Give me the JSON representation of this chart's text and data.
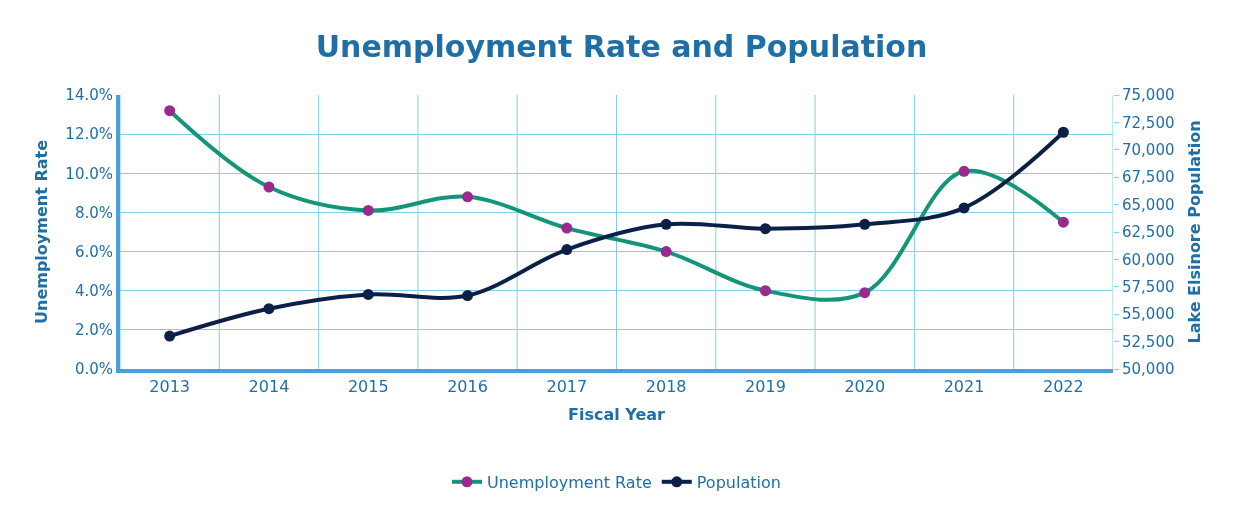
{
  "chart_data": {
    "type": "line",
    "title": "Unemployment Rate and Population",
    "xlabel": "Fiscal Year",
    "ylabel": "Unemployment Rate",
    "y2label": "Lake Elsinore Population",
    "categories": [
      "2013",
      "2014",
      "2015",
      "2016",
      "2017",
      "2018",
      "2019",
      "2020",
      "2021",
      "2022"
    ],
    "series": [
      {
        "name": "Unemployment Rate",
        "color": "#13957a",
        "colors": [
          "#9b2a8f",
          "#9b2a8f",
          "#9b2a8f",
          "#9b2a8f",
          "#9b2a8f",
          "#9b2a8f",
          "#9b2a8f",
          "#9b2a8f",
          "#9b2a8f",
          "#9b2a8f"
        ],
        "values": [
          13.2,
          9.3,
          8.1,
          8.8,
          7.2,
          6.0,
          4.0,
          3.9,
          10.1,
          7.5
        ]
      },
      {
        "name": "Population",
        "color": "#0c1f47",
        "axis": "y2",
        "values": [
          53000,
          55500,
          56800,
          56700,
          60900,
          63200,
          62800,
          63200,
          64700,
          71600
        ]
      }
    ],
    "ylim": [
      0,
      14
    ],
    "yticks": [
      {
        "value": 0,
        "label": "0.0%"
      },
      {
        "value": 2,
        "label": "2.0%"
      },
      {
        "value": 4,
        "label": "4.0%"
      },
      {
        "value": 6,
        "label": "6.0%"
      },
      {
        "value": 8,
        "label": "8.0%"
      },
      {
        "value": 10,
        "label": "10.0%"
      },
      {
        "value": 12,
        "label": "12.0%"
      },
      {
        "value": 14,
        "label": "14.0%"
      }
    ],
    "y2lim": [
      50000,
      75000
    ],
    "y2ticks": [
      {
        "value": 50000,
        "label": "50,000"
      },
      {
        "value": 52500,
        "label": "52,500"
      },
      {
        "value": 55000,
        "label": "55,000"
      },
      {
        "value": 57500,
        "label": "57,500"
      },
      {
        "value": 60000,
        "label": "60,000"
      },
      {
        "value": 62500,
        "label": "62,500"
      },
      {
        "value": 65000,
        "label": "65,000"
      },
      {
        "value": 67500,
        "label": "67,500"
      },
      {
        "value": 70000,
        "label": "70,000"
      },
      {
        "value": 72500,
        "label": "72,500"
      },
      {
        "value": 75000,
        "label": "75,000"
      }
    ],
    "grid": true,
    "legend": "bottom",
    "marker": "circle",
    "line_style": "solid"
  }
}
